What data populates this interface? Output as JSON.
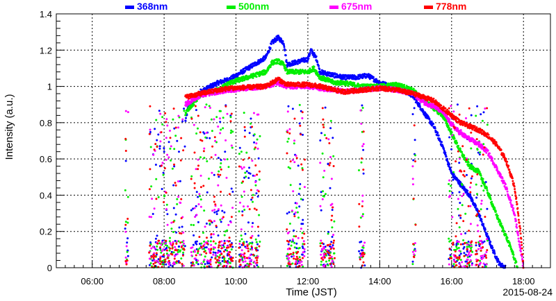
{
  "chart_data": {
    "type": "scatter",
    "xlabel": "Time (JST)",
    "ylabel": "Intensity (a.u.)",
    "date_label": "2015-08-24",
    "xlim": [
      "05:00",
      "18:45"
    ],
    "ylim": [
      0,
      1.4
    ],
    "x_ticks": [
      "06:00",
      "08:00",
      "10:00",
      "12:00",
      "14:00",
      "16:00",
      "18:00"
    ],
    "y_ticks": [
      "0",
      "0.2",
      "0.4",
      "0.6",
      "0.8",
      "1",
      "1.2",
      "1.4"
    ],
    "grid": true,
    "legend_position": "top",
    "series": [
      {
        "name": "368nm",
        "color": "#0000ff",
        "envelope": [
          [
            "08:35",
            0.8
          ],
          [
            "08:40",
            0.88
          ],
          [
            "09:00",
            0.97
          ],
          [
            "09:30",
            1.02
          ],
          [
            "09:50",
            1.04
          ],
          [
            "10:50",
            1.16
          ],
          [
            "11:00",
            1.24
          ],
          [
            "11:10",
            1.27
          ],
          [
            "11:20",
            1.24
          ],
          [
            "11:25",
            1.12
          ],
          [
            "12:00",
            1.15
          ],
          [
            "12:05",
            1.2
          ],
          [
            "12:15",
            1.15
          ],
          [
            "12:20",
            1.08
          ],
          [
            "12:45",
            1.06
          ],
          [
            "13:00",
            1.05
          ],
          [
            "13:20",
            1.05
          ],
          [
            "13:40",
            1.06
          ],
          [
            "14:00",
            1.02
          ],
          [
            "14:30",
            0.99
          ],
          [
            "14:55",
            0.95
          ],
          [
            "15:15",
            0.85
          ],
          [
            "15:30",
            0.78
          ],
          [
            "15:45",
            0.67
          ],
          [
            "16:00",
            0.52
          ],
          [
            "16:20",
            0.44
          ],
          [
            "16:30",
            0.4
          ],
          [
            "16:45",
            0.3
          ],
          [
            "17:00",
            0.17
          ],
          [
            "17:10",
            0.09
          ],
          [
            "17:20",
            0.02
          ],
          [
            "17:30",
            0.0
          ]
        ]
      },
      {
        "name": "500nm",
        "color": "#00ee00",
        "envelope": [
          [
            "08:35",
            0.85
          ],
          [
            "09:00",
            0.95
          ],
          [
            "09:30",
            0.98
          ],
          [
            "09:50",
            1.02
          ],
          [
            "10:50",
            1.08
          ],
          [
            "11:00",
            1.13
          ],
          [
            "11:10",
            1.14
          ],
          [
            "11:20",
            1.12
          ],
          [
            "11:25",
            1.08
          ],
          [
            "12:00",
            1.08
          ],
          [
            "12:10",
            1.1
          ],
          [
            "12:20",
            1.05
          ],
          [
            "12:45",
            1.02
          ],
          [
            "13:00",
            1.02
          ],
          [
            "13:30",
            1.0
          ],
          [
            "14:00",
            1.0
          ],
          [
            "14:30",
            1.01
          ],
          [
            "14:55",
            0.98
          ],
          [
            "15:15",
            0.92
          ],
          [
            "15:30",
            0.88
          ],
          [
            "15:45",
            0.84
          ],
          [
            "16:00",
            0.74
          ],
          [
            "16:15",
            0.64
          ],
          [
            "16:30",
            0.56
          ],
          [
            "16:45",
            0.53
          ],
          [
            "17:00",
            0.42
          ],
          [
            "17:15",
            0.29
          ],
          [
            "17:30",
            0.18
          ],
          [
            "17:40",
            0.1
          ],
          [
            "17:50",
            0.0
          ]
        ]
      },
      {
        "name": "675nm",
        "color": "#ff00ff",
        "envelope": [
          [
            "08:35",
            0.9
          ],
          [
            "09:00",
            0.95
          ],
          [
            "09:30",
            0.97
          ],
          [
            "09:50",
            0.98
          ],
          [
            "10:50",
            1.0
          ],
          [
            "11:10",
            1.02
          ],
          [
            "11:25",
            1.0
          ],
          [
            "12:00",
            1.0
          ],
          [
            "12:20",
            0.99
          ],
          [
            "12:45",
            0.98
          ],
          [
            "13:00",
            0.97
          ],
          [
            "13:30",
            0.98
          ],
          [
            "14:00",
            0.99
          ],
          [
            "14:30",
            0.98
          ],
          [
            "14:55",
            0.96
          ],
          [
            "15:15",
            0.91
          ],
          [
            "15:30",
            0.89
          ],
          [
            "15:45",
            0.86
          ],
          [
            "16:00",
            0.79
          ],
          [
            "16:15",
            0.74
          ],
          [
            "16:30",
            0.71
          ],
          [
            "16:45",
            0.68
          ],
          [
            "17:00",
            0.64
          ],
          [
            "17:15",
            0.55
          ],
          [
            "17:30",
            0.45
          ],
          [
            "17:45",
            0.3
          ],
          [
            "17:55",
            0.1
          ],
          [
            "18:00",
            0.0
          ]
        ]
      },
      {
        "name": "778nm",
        "color": "#ff0000",
        "envelope": [
          [
            "08:35",
            0.94
          ],
          [
            "09:00",
            0.96
          ],
          [
            "09:30",
            0.98
          ],
          [
            "09:50",
            0.99
          ],
          [
            "10:50",
            1.0
          ],
          [
            "11:10",
            1.04
          ],
          [
            "11:25",
            1.01
          ],
          [
            "12:00",
            1.01
          ],
          [
            "12:20",
            1.0
          ],
          [
            "12:45",
            0.98
          ],
          [
            "13:00",
            0.97
          ],
          [
            "13:30",
            0.98
          ],
          [
            "14:00",
            0.99
          ],
          [
            "14:30",
            0.98
          ],
          [
            "14:55",
            0.96
          ],
          [
            "15:15",
            0.94
          ],
          [
            "15:30",
            0.92
          ],
          [
            "15:45",
            0.88
          ],
          [
            "16:00",
            0.84
          ],
          [
            "16:15",
            0.8
          ],
          [
            "16:30",
            0.78
          ],
          [
            "16:45",
            0.76
          ],
          [
            "17:00",
            0.73
          ],
          [
            "17:15",
            0.68
          ],
          [
            "17:30",
            0.6
          ],
          [
            "17:45",
            0.45
          ],
          [
            "17:55",
            0.2
          ],
          [
            "18:00",
            0.0
          ]
        ]
      }
    ],
    "scatter_windows": [
      [
        "06:55",
        "07:00"
      ],
      [
        "07:35",
        "08:35"
      ],
      [
        "08:45",
        "09:55"
      ],
      [
        "10:05",
        "10:40"
      ],
      [
        "11:25",
        "11:55"
      ],
      [
        "12:20",
        "12:45"
      ],
      [
        "13:25",
        "13:35"
      ],
      [
        "14:55",
        "15:00"
      ],
      [
        "15:55",
        "16:35"
      ],
      [
        "16:40",
        "17:00"
      ]
    ]
  }
}
